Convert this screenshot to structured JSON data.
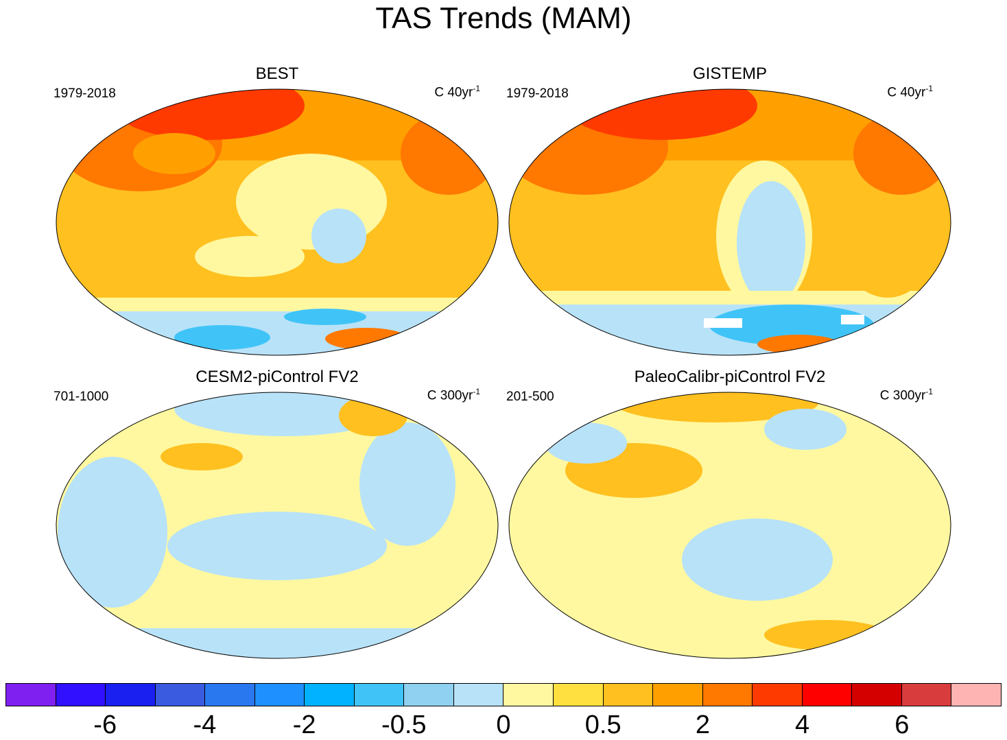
{
  "title": "TAS Trends (MAM)",
  "panels": [
    {
      "title": "BEST",
      "period": "1979-2018",
      "units_base": "C 40yr",
      "units_exp": "-1"
    },
    {
      "title": "GISTEMP",
      "period": "1979-2018",
      "units_base": "C 40yr",
      "units_exp": "-1"
    },
    {
      "title": "CESM2-piControl FV2",
      "period": "701-1000",
      "units_base": "C 300yr",
      "units_exp": "-1"
    },
    {
      "title": "PaleoCalibr-piControl FV2",
      "period": "201-500",
      "units_base": "C 300yr",
      "units_exp": "-1"
    }
  ],
  "colorbar": {
    "colors": [
      "#8020f0",
      "#3010ff",
      "#1a20f0",
      "#3a5ae0",
      "#2a78f0",
      "#1e90ff",
      "#00b2ff",
      "#40c4f8",
      "#90d0f0",
      "#b8e2f8",
      "#fff8a0",
      "#ffe040",
      "#ffc020",
      "#ffa000",
      "#ff7800",
      "#ff3a00",
      "#ff0000",
      "#d40000",
      "#d83c3c",
      "#ffb4b4"
    ],
    "labels": [
      "-6",
      "-4",
      "-2",
      "-0.5",
      "0",
      "0.5",
      "2",
      "4",
      "6"
    ]
  }
}
